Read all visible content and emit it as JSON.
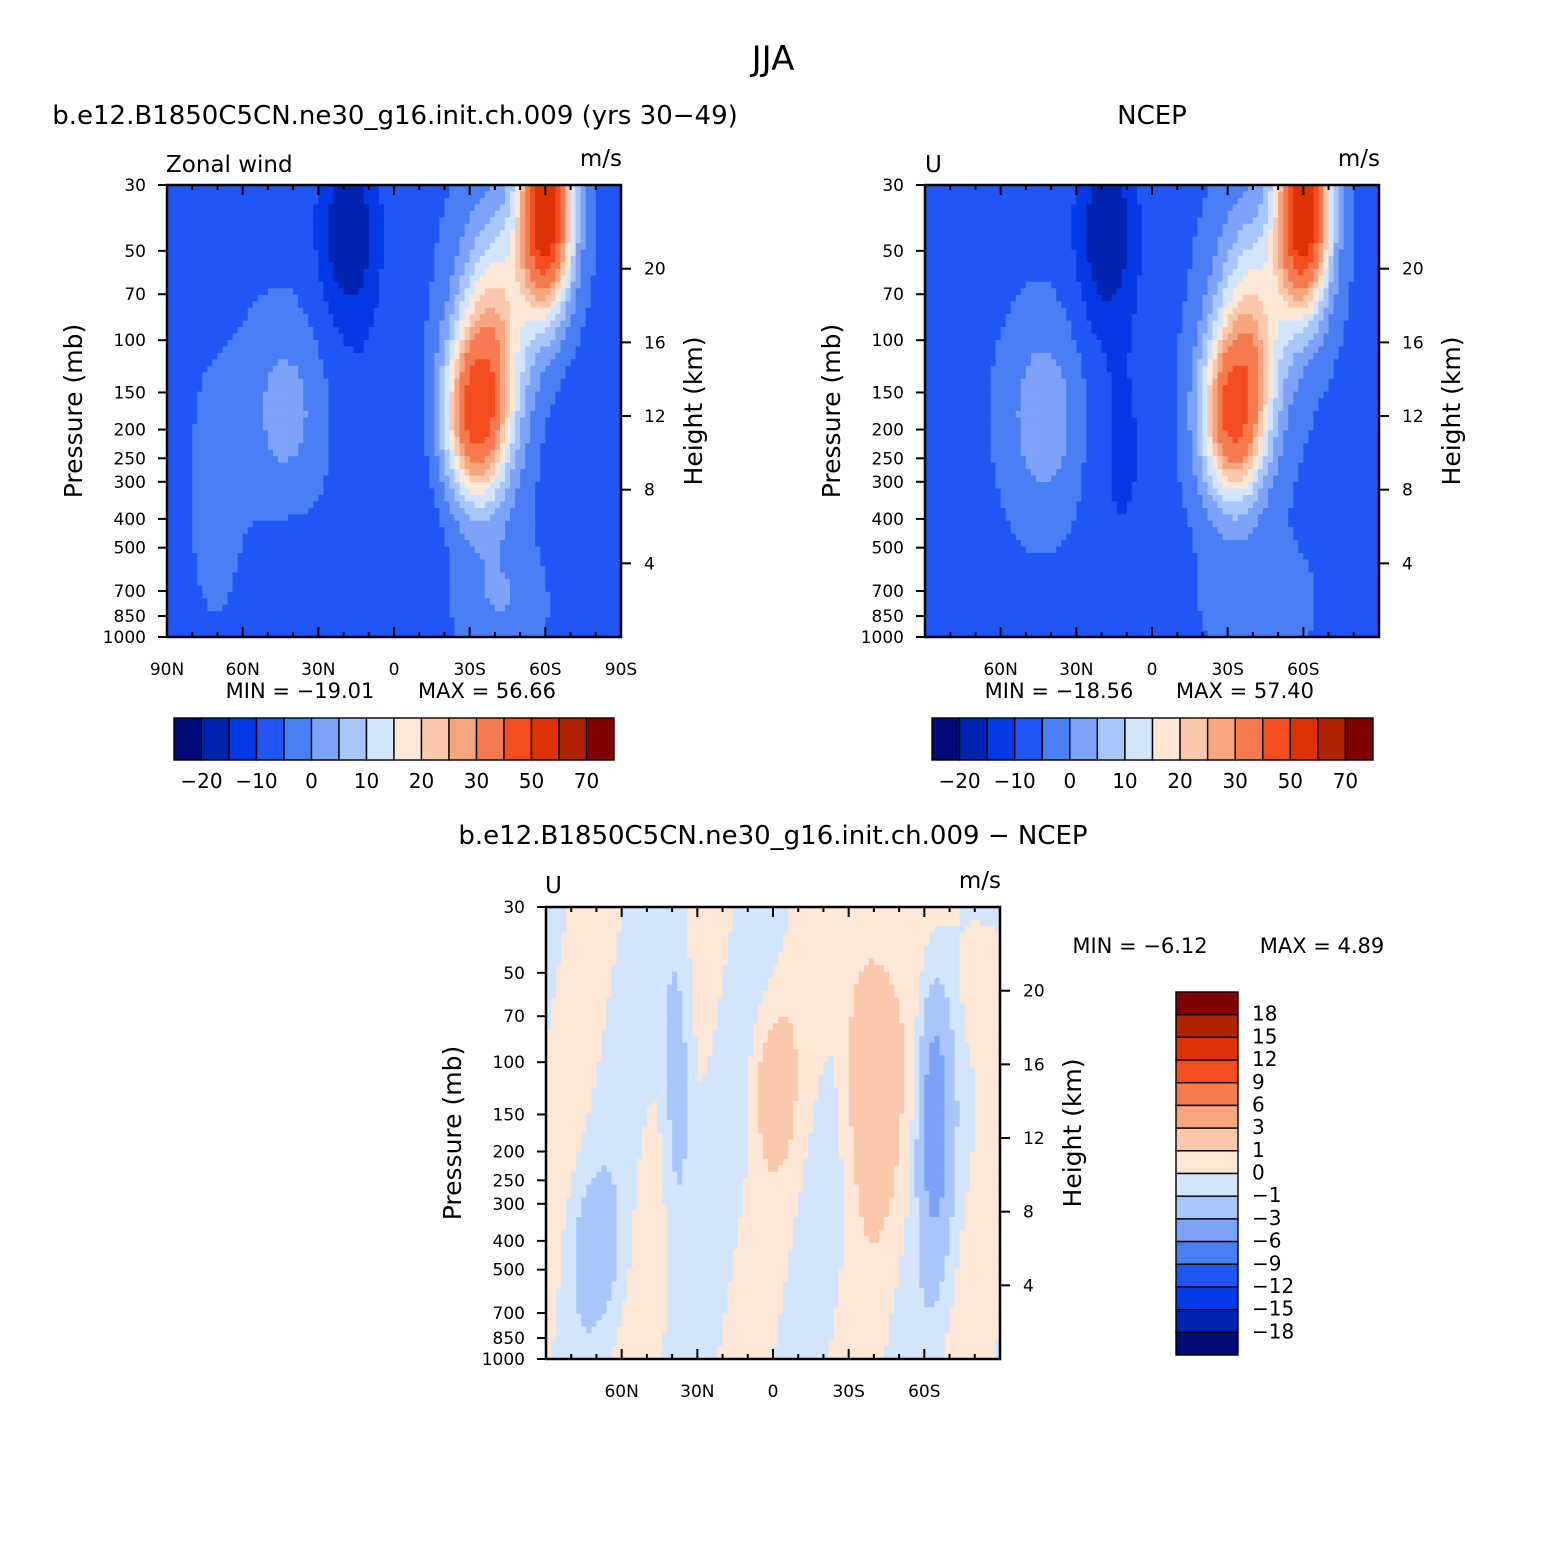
{
  "figure_title": "JJA",
  "palettes": {
    "full": [
      "#000b7b",
      "#0024b2",
      "#0439e6",
      "#2056f6",
      "#4a7ef4",
      "#7ca3f7",
      "#a9c6fb",
      "#d2e5fb",
      "#fde7d6",
      "#fbc8ac",
      "#f7a57e",
      "#f57b4f",
      "#f54d1f",
      "#de3106",
      "#b22100",
      "#7f0100"
    ],
    "diff": [
      "#000b7b",
      "#0024b2",
      "#0439e6",
      "#2056f6",
      "#4a7ef4",
      "#7ca3f7",
      "#a9c6fb",
      "#d2e5fb",
      "#fde7d6",
      "#fbc8ac",
      "#f7a57e",
      "#f57b4f",
      "#f54d1f",
      "#de3106",
      "#b22100",
      "#7f0100"
    ]
  },
  "chart_data": [
    {
      "type": "heatmap",
      "title": "b.e12.B1850C5CN.ne30_g16.init.ch.009 (yrs 30−49)",
      "left_label": "Zonal wind",
      "units": "m/s",
      "ylabel": "Pressure (mb)",
      "y2label": "Height (km)",
      "xlim": [
        90,
        -90
      ],
      "x_ticks": [
        90,
        60,
        30,
        0,
        -30,
        -60,
        -90
      ],
      "x_tick_labels": [
        "90N",
        "60N",
        "30N",
        "0",
        "30S",
        "60S",
        "90S"
      ],
      "y_ticks": [
        30,
        50,
        70,
        100,
        150,
        200,
        250,
        300,
        400,
        500,
        700,
        850,
        1000
      ],
      "y_tick_labels": [
        "30",
        "50",
        "70",
        "100",
        "150",
        "200",
        "250",
        "300",
        "400",
        "500",
        "700",
        "850",
        "1000"
      ],
      "y2_ticks": [
        20,
        16,
        12,
        8,
        4
      ],
      "y2_tick_labels": [
        "20",
        "16",
        "12",
        "8",
        "4"
      ],
      "min_label": "MIN = −19.01",
      "max_label": "MAX = 56.66",
      "min": -19.01,
      "max": 56.66,
      "levels": [
        -20,
        -15,
        -10,
        -5,
        0,
        5,
        10,
        15,
        20,
        25,
        30,
        40,
        50,
        60,
        70
      ],
      "colorbar_labels": [
        "−20",
        "−10",
        "0",
        "10",
        "20",
        "30",
        "50",
        "70"
      ],
      "colorbar_label_index": [
        0,
        2,
        4,
        6,
        8,
        10,
        12,
        14
      ]
    },
    {
      "type": "heatmap",
      "title": "NCEP",
      "left_label": "U",
      "units": "m/s",
      "ylabel": "Pressure (mb)",
      "y2label": "Height (km)",
      "xlim": [
        90,
        -90
      ],
      "x_ticks": [
        60,
        30,
        0,
        -30,
        -60
      ],
      "x_tick_labels": [
        "60N",
        "30N",
        "0",
        "30S",
        "60S"
      ],
      "y_ticks": [
        30,
        50,
        70,
        100,
        150,
        200,
        250,
        300,
        400,
        500,
        700,
        850,
        1000
      ],
      "y_tick_labels": [
        "30",
        "50",
        "70",
        "100",
        "150",
        "200",
        "250",
        "300",
        "400",
        "500",
        "700",
        "850",
        "1000"
      ],
      "y2_ticks": [
        20,
        16,
        12,
        8,
        4
      ],
      "y2_tick_labels": [
        "20",
        "16",
        "12",
        "8",
        "4"
      ],
      "min_label": "MIN = −18.56",
      "max_label": "MAX = 57.40",
      "min": -18.56,
      "max": 57.4,
      "levels": [
        -20,
        -15,
        -10,
        -5,
        0,
        5,
        10,
        15,
        20,
        25,
        30,
        40,
        50,
        60,
        70
      ],
      "colorbar_labels": [
        "−20",
        "−10",
        "0",
        "10",
        "20",
        "30",
        "50",
        "70"
      ],
      "colorbar_label_index": [
        0,
        2,
        4,
        6,
        8,
        10,
        12,
        14
      ]
    },
    {
      "type": "heatmap",
      "title": "b.e12.B1850C5CN.ne30_g16.init.ch.009 − NCEP",
      "left_label": "U",
      "units": "m/s",
      "ylabel": "Pressure (mb)",
      "y2label": "Height (km)",
      "xlim": [
        90,
        -90
      ],
      "x_ticks": [
        60,
        30,
        0,
        -30,
        -60
      ],
      "x_tick_labels": [
        "60N",
        "30N",
        "0",
        "30S",
        "60S"
      ],
      "y_ticks": [
        30,
        50,
        70,
        100,
        150,
        200,
        250,
        300,
        400,
        500,
        700,
        850,
        1000
      ],
      "y_tick_labels": [
        "30",
        "50",
        "70",
        "100",
        "150",
        "200",
        "250",
        "300",
        "400",
        "500",
        "700",
        "850",
        "1000"
      ],
      "y2_ticks": [
        20,
        16,
        12,
        8,
        4
      ],
      "y2_tick_labels": [
        "20",
        "16",
        "12",
        "8",
        "4"
      ],
      "min_label": "MIN = −6.12",
      "max_label": "MAX = 4.89",
      "min": -6.12,
      "max": 4.89,
      "levels": [
        -18,
        -15,
        -12,
        -9,
        -6,
        -3,
        -1,
        0,
        1,
        3,
        6,
        9,
        12,
        15,
        18
      ],
      "colorbar_labels": [
        "18",
        "15",
        "12",
        "9",
        "6",
        "3",
        "1",
        "0",
        "−1",
        "−3",
        "−6",
        "−9",
        "−12",
        "−15",
        "−18"
      ]
    }
  ]
}
